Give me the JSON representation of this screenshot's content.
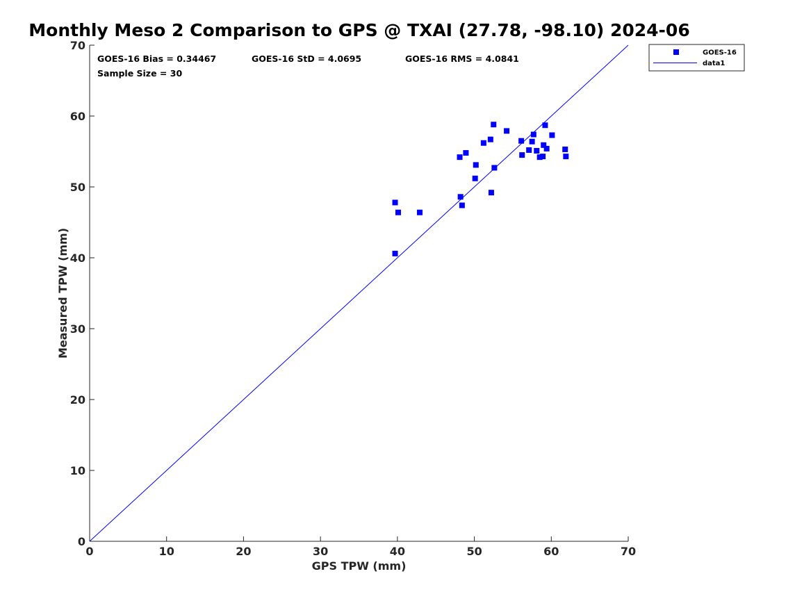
{
  "chart_data": {
    "type": "scatter",
    "title": "Monthly Meso 2 Comparison to GPS @ TXAI (27.78, -98.10) 2024-06",
    "xlabel": "GPS TPW (mm)",
    "ylabel": "Measured TPW (mm)",
    "xlim": [
      0,
      70
    ],
    "ylim": [
      0,
      70
    ],
    "x_ticks": [
      "0",
      "10",
      "20",
      "30",
      "40",
      "50",
      "60",
      "70"
    ],
    "y_ticks": [
      "0",
      "10",
      "20",
      "30",
      "40",
      "50",
      "60",
      "70"
    ],
    "grid": false,
    "legend_position": "top-right",
    "annotations": {
      "bias": "GOES-16 Bias = 0.34467",
      "std": "GOES-16 StD = 4.0695",
      "rms": "GOES-16 RMS = 4.0841",
      "sample_size": "Sample Size = 30"
    },
    "series": [
      {
        "name": "GOES-16",
        "kind": "scatter",
        "marker": "square",
        "color": "#0000ff",
        "points": [
          [
            39.7,
            47.8
          ],
          [
            40.1,
            46.4
          ],
          [
            39.7,
            40.6
          ],
          [
            42.9,
            46.4
          ],
          [
            48.2,
            48.6
          ],
          [
            48.4,
            47.4
          ],
          [
            48.1,
            54.2
          ],
          [
            48.9,
            54.8
          ],
          [
            50.1,
            51.2
          ],
          [
            50.2,
            53.1
          ],
          [
            51.2,
            56.2
          ],
          [
            52.1,
            56.7
          ],
          [
            52.2,
            49.2
          ],
          [
            52.5,
            58.8
          ],
          [
            52.6,
            52.7
          ],
          [
            54.2,
            57.9
          ],
          [
            56.1,
            56.5
          ],
          [
            56.2,
            54.5
          ],
          [
            57.1,
            55.2
          ],
          [
            57.5,
            56.4
          ],
          [
            57.7,
            57.4
          ],
          [
            58.1,
            55.1
          ],
          [
            58.5,
            54.2
          ],
          [
            58.9,
            54.3
          ],
          [
            59.0,
            55.9
          ],
          [
            59.2,
            58.7
          ],
          [
            59.4,
            55.4
          ],
          [
            60.1,
            57.3
          ],
          [
            61.8,
            55.3
          ],
          [
            61.9,
            54.3
          ]
        ]
      },
      {
        "name": "data1",
        "kind": "line",
        "color": "#0000ff",
        "points": [
          [
            0,
            0
          ],
          [
            70,
            70
          ]
        ]
      }
    ]
  }
}
